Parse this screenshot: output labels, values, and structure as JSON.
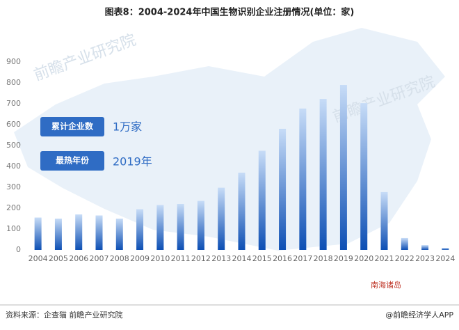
{
  "title": "图表8：2004-2024年中国生物识别企业注册情况(单位：家)",
  "chart_data": {
    "type": "bar",
    "categories": [
      "2004",
      "2005",
      "2006",
      "2007",
      "2008",
      "2009",
      "2010",
      "2011",
      "2012",
      "2013",
      "2014",
      "2015",
      "2016",
      "2017",
      "2018",
      "2019",
      "2020",
      "2021",
      "2022",
      "2023",
      "2024"
    ],
    "values": [
      155,
      150,
      170,
      165,
      150,
      195,
      215,
      220,
      235,
      298,
      370,
      475,
      580,
      677,
      723,
      790,
      703,
      277,
      57,
      23,
      10
    ],
    "color": "#1c5bbf",
    "ylim": [
      0,
      900
    ],
    "yticks": [
      0,
      100,
      200,
      300,
      400,
      500,
      600,
      700,
      800,
      900
    ]
  },
  "callouts": [
    {
      "label": "累计企业数",
      "value": "1万家"
    },
    {
      "label": "最热年份",
      "value": "2019年"
    }
  ],
  "map_note": "南海诸岛",
  "watermark": "前瞻产业研究院",
  "source": "资料来源：企查猫 前瞻产业研究院",
  "credit": "@前瞻经济学人APP"
}
